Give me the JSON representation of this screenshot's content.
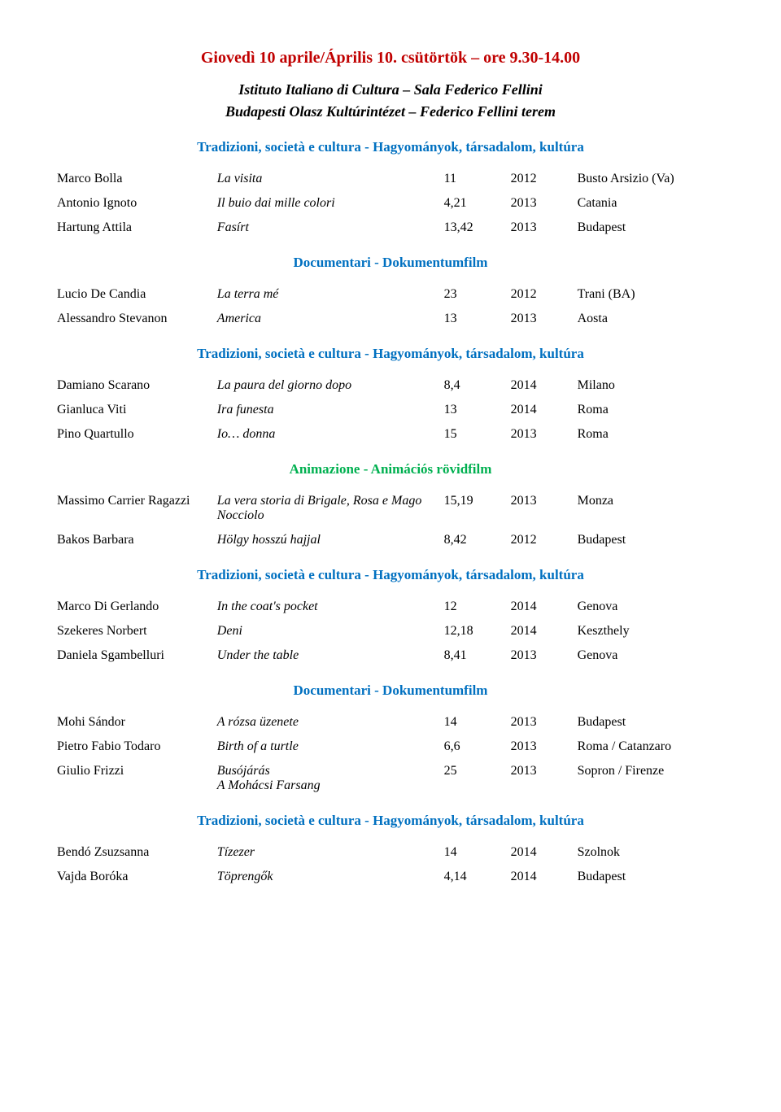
{
  "colors": {
    "title": "#c00000",
    "blue": "#0070c0",
    "green": "#00b050",
    "text": "#000000",
    "background": "#ffffff"
  },
  "page_title": "Giovedì 10 aprile/Április 10. csütörtök – ore 9.30-14.00",
  "venue_line1": "Istituto Italiano di Cultura – Sala Federico Fellini",
  "venue_line2": "Budapesti Olasz Kultúrintézet – Federico Fellini terem",
  "headings": {
    "tradizioni": "Tradizioni, società e cultura - Hagyományok, társadalom, kultúra",
    "documentari": "Documentari - Dokumentumfilm",
    "animazione": "Animazione - Animációs rövidfilm"
  },
  "sections": [
    {
      "heading_key": "tradizioni",
      "color": "blue",
      "rows": [
        {
          "name": "Marco Bolla",
          "title": "La visita",
          "dur": "11",
          "year": "2012",
          "place": "Busto Arsizio (Va)"
        },
        {
          "name": "Antonio Ignoto",
          "title": "Il buio dai mille colori",
          "dur": "4,21",
          "year": "2013",
          "place": "Catania"
        },
        {
          "name": "Hartung Attila",
          "title": "Fasírt",
          "dur": "13,42",
          "year": "2013",
          "place": "Budapest"
        }
      ]
    },
    {
      "heading_key": "documentari",
      "color": "blue",
      "rows": [
        {
          "name": "Lucio De Candia",
          "title": "La terra mé",
          "dur": "23",
          "year": "2012",
          "place": "Trani (BA)"
        },
        {
          "name": "Alessandro Stevanon",
          "title": "America",
          "dur": "13",
          "year": "2013",
          "place": "Aosta"
        }
      ]
    },
    {
      "heading_key": "tradizioni",
      "color": "blue",
      "rows": [
        {
          "name": "Damiano Scarano",
          "title": "La paura del giorno dopo",
          "dur": "8,4",
          "year": "2014",
          "place": "Milano"
        },
        {
          "name": "Gianluca Viti",
          "title": "Ira funesta",
          "dur": "13",
          "year": "2014",
          "place": "Roma"
        },
        {
          "name": "Pino Quartullo",
          "title": "Io… donna",
          "dur": "15",
          "year": "2013",
          "place": "Roma"
        }
      ]
    },
    {
      "heading_key": "animazione",
      "color": "green",
      "rows": [
        {
          "name": "Massimo Carrier Ragazzi",
          "title": "La vera storia di Brigale, Rosa e Mago Nocciolo",
          "dur": "15,19",
          "year": "2013",
          "place": "Monza"
        },
        {
          "name": "Bakos Barbara",
          "title": "Hölgy hosszú hajjal",
          "dur": "8,42",
          "year": "2012",
          "place": "Budapest"
        }
      ]
    },
    {
      "heading_key": "tradizioni",
      "color": "blue",
      "rows": [
        {
          "name": "Marco Di Gerlando",
          "title": "In the coat's pocket",
          "dur": "12",
          "year": "2014",
          "place": "Genova"
        },
        {
          "name": "Szekeres Norbert",
          "title": "Deni",
          "dur": "12,18",
          "year": "2014",
          "place": "Keszthely"
        },
        {
          "name": "Daniela Sgambelluri",
          "title": "Under the table",
          "dur": "8,41",
          "year": "2013",
          "place": "Genova"
        }
      ]
    },
    {
      "heading_key": "documentari",
      "color": "blue",
      "rows": [
        {
          "name": "Mohi Sándor",
          "title": "A rózsa üzenete",
          "dur": "14",
          "year": "2013",
          "place": "Budapest"
        },
        {
          "name": "Pietro Fabio Todaro",
          "title": "Birth of a turtle",
          "dur": "6,6",
          "year": "2013",
          "place": "Roma / Catanzaro"
        },
        {
          "name": "Giulio Frizzi",
          "title": "Busójárás\nA Mohácsi Farsang",
          "dur": "25",
          "year": "2013",
          "place": "Sopron / Firenze"
        }
      ]
    },
    {
      "heading_key": "tradizioni",
      "color": "blue",
      "rows": [
        {
          "name": "Bendó Zsuzsanna",
          "title": "Tízezer",
          "dur": "14",
          "year": "2014",
          "place": "Szolnok"
        },
        {
          "name": "Vajda Boróka",
          "title": "Töprengők",
          "dur": "4,14",
          "year": "2014",
          "place": "Budapest"
        }
      ]
    }
  ]
}
